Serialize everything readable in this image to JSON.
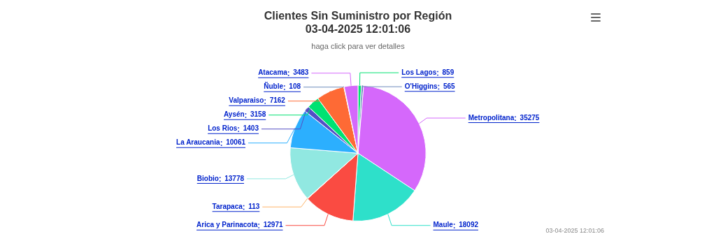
{
  "chart_data": {
    "type": "pie",
    "title": "Clientes Sin Suministro por Región\n03-04-2025 12:01:06",
    "subtitle": "haga click para ver detalles",
    "categories": [
      "Los Lagos",
      "O'Higgins",
      "Metropolitana",
      "Maule",
      "Arica y Parinacota",
      "Tarapaca",
      "Biobio",
      "La Araucania",
      "Los Rios",
      "Aysén",
      "Valparaiso",
      "Ñuble",
      "Atacama"
    ],
    "values": [
      859,
      565,
      35275,
      18092,
      12971,
      113,
      13778,
      10061,
      1403,
      3158,
      7162,
      108,
      3483
    ],
    "colors": [
      "#00e272",
      "#6b8abc",
      "#d568fb",
      "#2ee0ca",
      "#fa4b42",
      "#feb56a",
      "#91e8e1",
      "#2caffe",
      "#544fc5",
      "#00e272",
      "#fe6a35",
      "#6b8abc",
      "#d568fb"
    ],
    "data_labels": true,
    "legend": false,
    "annotations": [
      "03-04-2025 12:01:06"
    ]
  }
}
